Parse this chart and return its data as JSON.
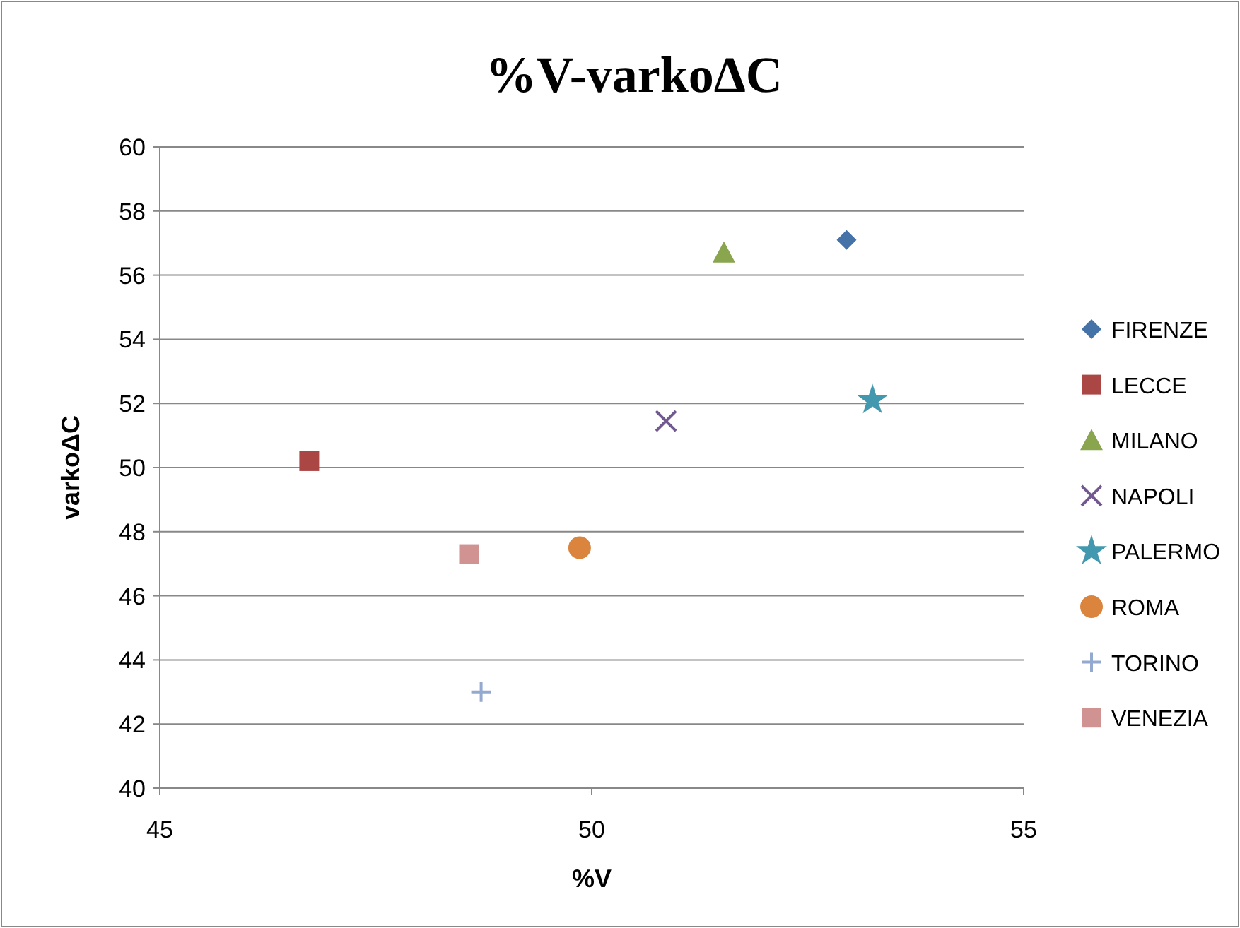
{
  "chart_data": {
    "type": "scatter",
    "title": "%V-varkoΔC",
    "xlabel": "%V",
    "ylabel": "varkoΔC",
    "xlim": [
      45,
      55
    ],
    "xticks": [
      45,
      50,
      55
    ],
    "ylim": [
      40,
      60
    ],
    "yticks": [
      40,
      42,
      44,
      46,
      48,
      50,
      52,
      54,
      56,
      58,
      60
    ],
    "grid": "y",
    "legend": "right",
    "series": [
      {
        "name": "FIRENZE",
        "color": "#4572a7",
        "marker": "diamond",
        "x": [
          52.95
        ],
        "values": [
          57.1
        ]
      },
      {
        "name": "LECCE",
        "color": "#aa4643",
        "marker": "square",
        "x": [
          46.73
        ],
        "values": [
          50.2
        ]
      },
      {
        "name": "MILANO",
        "color": "#89a54e",
        "marker": "triangle",
        "x": [
          51.53
        ],
        "values": [
          56.7
        ]
      },
      {
        "name": "NAPOLI",
        "color": "#71588f",
        "marker": "cross",
        "x": [
          50.86
        ],
        "values": [
          51.45
        ]
      },
      {
        "name": "PALERMO",
        "color": "#4198af",
        "marker": "star",
        "x": [
          53.25
        ],
        "values": [
          52.1
        ]
      },
      {
        "name": "ROMA",
        "color": "#db843d",
        "marker": "circle",
        "x": [
          49.86
        ],
        "values": [
          47.5
        ]
      },
      {
        "name": "TORINO",
        "color": "#93a9cf",
        "marker": "plus",
        "x": [
          48.72
        ],
        "values": [
          43.0
        ]
      },
      {
        "name": "VENEZIA",
        "color": "#d19392",
        "marker": "square",
        "x": [
          48.58
        ],
        "values": [
          47.3
        ]
      }
    ]
  }
}
